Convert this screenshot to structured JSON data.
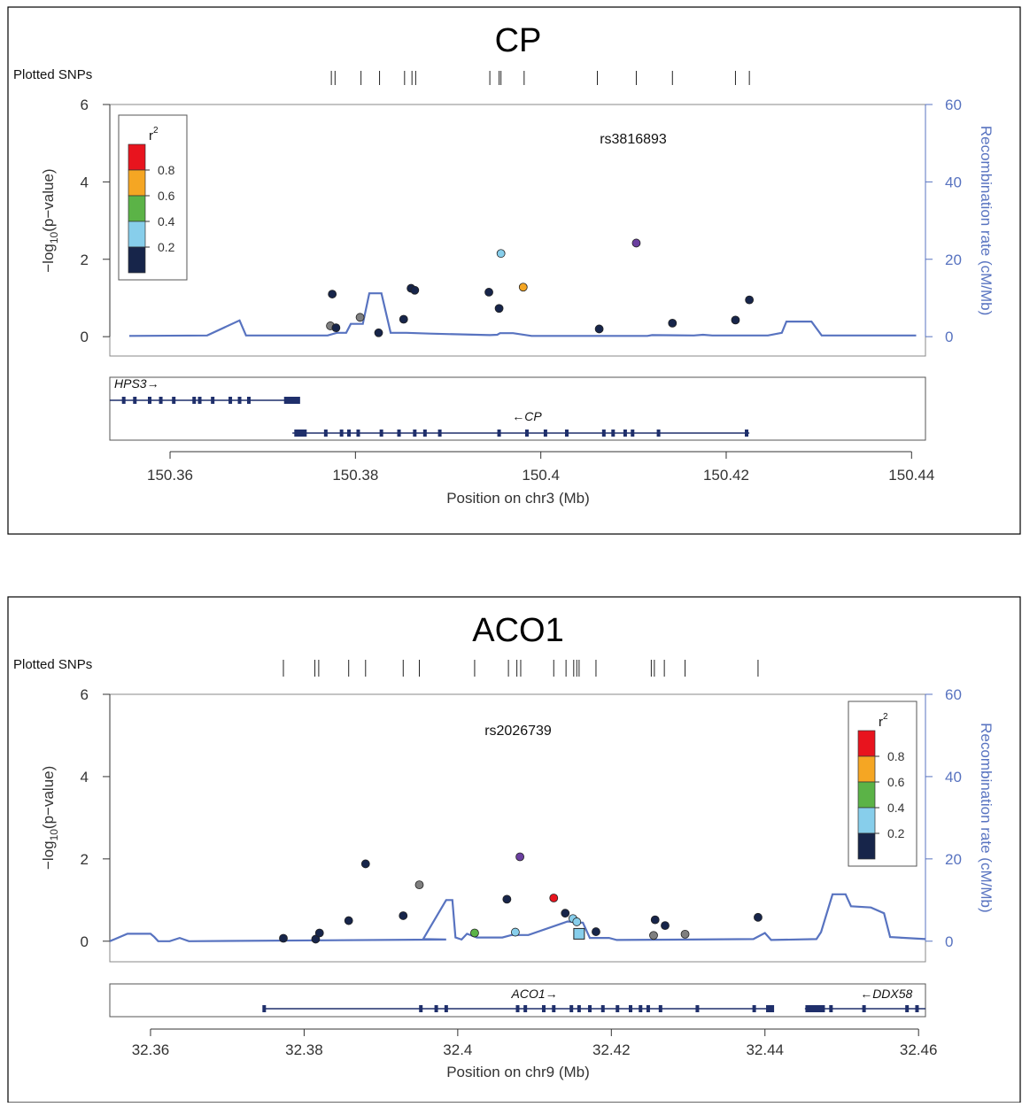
{
  "chart_data": [
    {
      "type": "scatter",
      "title": "CP",
      "snp_label": "Plotted SNPs",
      "top_snp": "rs3816893",
      "ylabel": "-log10(p-value)",
      "ylabel_main": "−log",
      "ylabel_sub": "10",
      "ylabel_rest": "(p−value)",
      "y2label": "Recombination rate (cM/Mb)",
      "xlabel": "Position on chr3 (Mb)",
      "xlim": [
        150.3535,
        150.4415
      ],
      "ylim": [
        -0.5,
        6
      ],
      "y2lim": [
        -5,
        60
      ],
      "xticks": [
        150.36,
        150.38,
        150.4,
        150.42,
        150.44
      ],
      "xtick_labels": [
        "150.36",
        "150.38",
        "150.4",
        "150.42",
        "150.44"
      ],
      "yticks": [
        0,
        2,
        4,
        6
      ],
      "ytick_labels": [
        "0",
        "2",
        "4",
        "6"
      ],
      "y2ticks": [
        0,
        20,
        40,
        60
      ],
      "y2tick_labels": [
        "0",
        "20",
        "40",
        "60"
      ],
      "legend": {
        "title": "r",
        "title_sup": "2",
        "position": "top-left",
        "labels": [
          "0.8",
          "0.6",
          "0.4",
          "0.2"
        ]
      },
      "snp_ticks": [
        150.3774,
        150.3778,
        150.3806,
        150.3826,
        150.3853,
        150.3861,
        150.3865,
        150.3945,
        150.3955,
        150.3957,
        150.3982,
        150.4061,
        150.4103,
        150.4142,
        150.421,
        150.4225
      ],
      "points": [
        {
          "x": 150.3775,
          "y": 1.1,
          "color": "#17254a",
          "shape": "circle"
        },
        {
          "x": 150.3773,
          "y": 0.28,
          "color": "#7f7f7f",
          "shape": "circle"
        },
        {
          "x": 150.3779,
          "y": 0.23,
          "color": "#17254a",
          "shape": "circle"
        },
        {
          "x": 150.3805,
          "y": 0.5,
          "color": "#7f7f7f",
          "shape": "circle"
        },
        {
          "x": 150.3825,
          "y": 0.1,
          "color": "#17254a",
          "shape": "circle"
        },
        {
          "x": 150.3852,
          "y": 0.45,
          "color": "#17254a",
          "shape": "circle"
        },
        {
          "x": 150.386,
          "y": 1.25,
          "color": "#17254a",
          "shape": "circle"
        },
        {
          "x": 150.3864,
          "y": 1.2,
          "color": "#17254a",
          "shape": "circle"
        },
        {
          "x": 150.3944,
          "y": 1.15,
          "color": "#17254a",
          "shape": "circle"
        },
        {
          "x": 150.3955,
          "y": 0.73,
          "color": "#17254a",
          "shape": "circle"
        },
        {
          "x": 150.3957,
          "y": 2.15,
          "color": "#87ceeb",
          "shape": "circle"
        },
        {
          "x": 150.3981,
          "y": 1.28,
          "color": "#f5a623",
          "shape": "circle"
        },
        {
          "x": 150.4063,
          "y": 0.2,
          "color": "#17254a",
          "shape": "circle"
        },
        {
          "x": 150.4103,
          "y": 2.42,
          "color": "#6b3fa0",
          "shape": "circle"
        },
        {
          "x": 150.4142,
          "y": 0.35,
          "color": "#17254a",
          "shape": "circle"
        },
        {
          "x": 150.421,
          "y": 0.43,
          "color": "#17254a",
          "shape": "circle"
        },
        {
          "x": 150.4225,
          "y": 0.95,
          "color": "#17254a",
          "shape": "circle"
        }
      ],
      "recomb": [
        [
          150.3556,
          0.2
        ],
        [
          150.364,
          0.3
        ],
        [
          150.3675,
          4.2
        ],
        [
          150.3682,
          0.3
        ],
        [
          150.377,
          0.3
        ],
        [
          150.378,
          1.0
        ],
        [
          150.379,
          1.0
        ],
        [
          150.3795,
          3.3
        ],
        [
          150.3808,
          3.3
        ],
        [
          150.3815,
          11.2
        ],
        [
          150.3828,
          11.2
        ],
        [
          150.3838,
          1.0
        ],
        [
          150.3855,
          1.0
        ],
        [
          150.388,
          0.8
        ],
        [
          150.3945,
          0.4
        ],
        [
          150.3953,
          0.5
        ],
        [
          150.3956,
          0.9
        ],
        [
          150.397,
          0.9
        ],
        [
          150.399,
          0.2
        ],
        [
          150.4115,
          0.2
        ],
        [
          150.412,
          0.4
        ],
        [
          150.4165,
          0.3
        ],
        [
          150.4175,
          0.5
        ],
        [
          150.4185,
          0.3
        ],
        [
          150.4245,
          0.3
        ],
        [
          150.426,
          1.0
        ],
        [
          150.4265,
          3.9
        ],
        [
          150.4292,
          3.9
        ],
        [
          150.4303,
          0.3
        ],
        [
          150.4405,
          0.3
        ]
      ],
      "genes": [
        {
          "name": "HPS3",
          "strand": "+",
          "start": 150.3535,
          "end": 150.374,
          "row": 0,
          "exons": [
            150.355,
            150.3562,
            150.3578,
            150.359,
            150.3604,
            150.3626,
            150.3632,
            150.3646,
            150.3665,
            150.3675,
            150.3685,
            150.3725
          ]
        },
        {
          "name": "CP",
          "strand": "-",
          "start": 150.3732,
          "end": 150.4225,
          "row": 1,
          "exons": [
            150.3738,
            150.3768,
            150.3785,
            150.3793,
            150.3803,
            150.3828,
            150.3847,
            150.3864,
            150.3875,
            150.3891,
            150.3955,
            150.3985,
            150.4005,
            150.4028,
            150.4068,
            150.4078,
            150.4091,
            150.4099,
            150.4127,
            150.4222
          ]
        }
      ]
    },
    {
      "type": "scatter",
      "title": "ACO1",
      "snp_label": "Plotted SNPs",
      "top_snp": "rs2026739",
      "ylabel": "-log10(p-value)",
      "ylabel_main": "−log",
      "ylabel_sub": "10",
      "ylabel_rest": "(p−value)",
      "y2label": "Recombination rate (cM/Mb)",
      "xlabel": "Position on chr9 (Mb)",
      "xlim": [
        32.3547,
        32.4609
      ],
      "ylim": [
        -0.5,
        6
      ],
      "y2lim": [
        -5,
        60
      ],
      "xticks": [
        32.36,
        32.38,
        32.4,
        32.42,
        32.44,
        32.46
      ],
      "xtick_labels": [
        "32.36",
        "32.38",
        "32.4",
        "32.42",
        "32.44",
        "32.46"
      ],
      "yticks": [
        0,
        2,
        4,
        6
      ],
      "ytick_labels": [
        "0",
        "2",
        "4",
        "6"
      ],
      "y2ticks": [
        0,
        20,
        40,
        60
      ],
      "y2tick_labels": [
        "0",
        "20",
        "40",
        "60"
      ],
      "legend": {
        "title": "r",
        "title_sup": "2",
        "position": "top-right",
        "labels": [
          "0.8",
          "0.6",
          "0.4",
          "0.2"
        ]
      },
      "snp_ticks": [
        32.3773,
        32.3814,
        32.3819,
        32.3858,
        32.388,
        32.3929,
        32.395,
        32.4022,
        32.4066,
        32.4077,
        32.4082,
        32.4125,
        32.4141,
        32.4151,
        32.4155,
        32.4158,
        32.418,
        32.4252,
        32.4256,
        32.4269,
        32.4296,
        32.4391
      ],
      "points": [
        {
          "x": 32.3773,
          "y": 0.07,
          "color": "#17254a",
          "shape": "circle"
        },
        {
          "x": 32.3815,
          "y": 0.05,
          "color": "#17254a",
          "shape": "circle"
        },
        {
          "x": 32.382,
          "y": 0.2,
          "color": "#17254a",
          "shape": "circle"
        },
        {
          "x": 32.3858,
          "y": 0.5,
          "color": "#17254a",
          "shape": "circle"
        },
        {
          "x": 32.388,
          "y": 1.88,
          "color": "#17254a",
          "shape": "circle"
        },
        {
          "x": 32.3929,
          "y": 0.62,
          "color": "#17254a",
          "shape": "circle"
        },
        {
          "x": 32.395,
          "y": 1.37,
          "color": "#7f7f7f",
          "shape": "circle"
        },
        {
          "x": 32.4022,
          "y": 0.2,
          "color": "#5bb347",
          "shape": "circle"
        },
        {
          "x": 32.4064,
          "y": 1.02,
          "color": "#17254a",
          "shape": "circle"
        },
        {
          "x": 32.4075,
          "y": 0.22,
          "color": "#87ceeb",
          "shape": "circle"
        },
        {
          "x": 32.4081,
          "y": 2.05,
          "color": "#6b3fa0",
          "shape": "circle"
        },
        {
          "x": 32.4125,
          "y": 1.05,
          "color": "#e8141e",
          "shape": "circle"
        },
        {
          "x": 32.414,
          "y": 0.68,
          "color": "#17254a",
          "shape": "circle"
        },
        {
          "x": 32.415,
          "y": 0.55,
          "color": "#87ceeb",
          "shape": "circle"
        },
        {
          "x": 32.4155,
          "y": 0.47,
          "color": "#87ceeb",
          "shape": "circle"
        },
        {
          "x": 32.4158,
          "y": 0.18,
          "color": "#87ceeb",
          "shape": "square"
        },
        {
          "x": 32.418,
          "y": 0.23,
          "color": "#17254a",
          "shape": "circle"
        },
        {
          "x": 32.4255,
          "y": 0.14,
          "color": "#7f7f7f",
          "shape": "circle"
        },
        {
          "x": 32.4257,
          "y": 0.52,
          "color": "#17254a",
          "shape": "circle"
        },
        {
          "x": 32.427,
          "y": 0.38,
          "color": "#17254a",
          "shape": "circle"
        },
        {
          "x": 32.4296,
          "y": 0.17,
          "color": "#7f7f7f",
          "shape": "circle"
        },
        {
          "x": 32.4391,
          "y": 0.58,
          "color": "#17254a",
          "shape": "circle"
        }
      ],
      "recomb": [
        [
          32.3547,
          0.0
        ],
        [
          32.357,
          1.8
        ],
        [
          32.36,
          1.8
        ],
        [
          32.3605,
          1.0
        ],
        [
          32.361,
          0.0
        ],
        [
          32.3625,
          0.0
        ],
        [
          32.3638,
          0.8
        ],
        [
          32.365,
          0.0
        ],
        [
          32.3985,
          0.4
        ],
        [
          32.3955,
          0.5
        ],
        [
          32.3985,
          10.0
        ],
        [
          32.3993,
          10.0
        ],
        [
          32.3997,
          0.9
        ],
        [
          32.4005,
          0.4
        ],
        [
          32.4012,
          1.8
        ],
        [
          32.4025,
          0.9
        ],
        [
          32.4058,
          0.9
        ],
        [
          32.407,
          1.5
        ],
        [
          32.4092,
          1.5
        ],
        [
          32.4143,
          4.8
        ],
        [
          32.4163,
          4.5
        ],
        [
          32.4172,
          0.8
        ],
        [
          32.4197,
          0.8
        ],
        [
          32.4207,
          0.3
        ],
        [
          32.4305,
          0.4
        ],
        [
          32.4385,
          0.5
        ],
        [
          32.44,
          2.0
        ],
        [
          32.4408,
          0.3
        ],
        [
          32.4467,
          0.5
        ],
        [
          32.4473,
          2.2
        ],
        [
          32.4488,
          11.4
        ],
        [
          32.4505,
          11.4
        ],
        [
          32.4512,
          8.5
        ],
        [
          32.4538,
          8.2
        ],
        [
          32.4555,
          6.8
        ],
        [
          32.4563,
          1.0
        ],
        [
          32.4609,
          0.5
        ]
      ],
      "genes": [
        {
          "name": "ACO1",
          "strand": "+",
          "start": 32.3747,
          "end": 32.4407,
          "row": 0,
          "label_x": 32.41,
          "exons": [
            32.3748,
            32.3952,
            32.3972,
            32.3985,
            32.4078,
            32.4088,
            32.4112,
            32.4125,
            32.4148,
            32.4158,
            32.4172,
            32.4189,
            32.4208,
            32.4225,
            32.4238,
            32.4248,
            32.4264,
            32.4312,
            32.4386,
            32.4404
          ]
        },
        {
          "name": "DDX58",
          "strand": "-",
          "start": 32.4452,
          "end": 32.4609,
          "row": 0,
          "label_x": 32.4558,
          "exons": [
            32.4465,
            32.4486,
            32.4529,
            32.4585,
            32.4598
          ]
        }
      ]
    }
  ]
}
